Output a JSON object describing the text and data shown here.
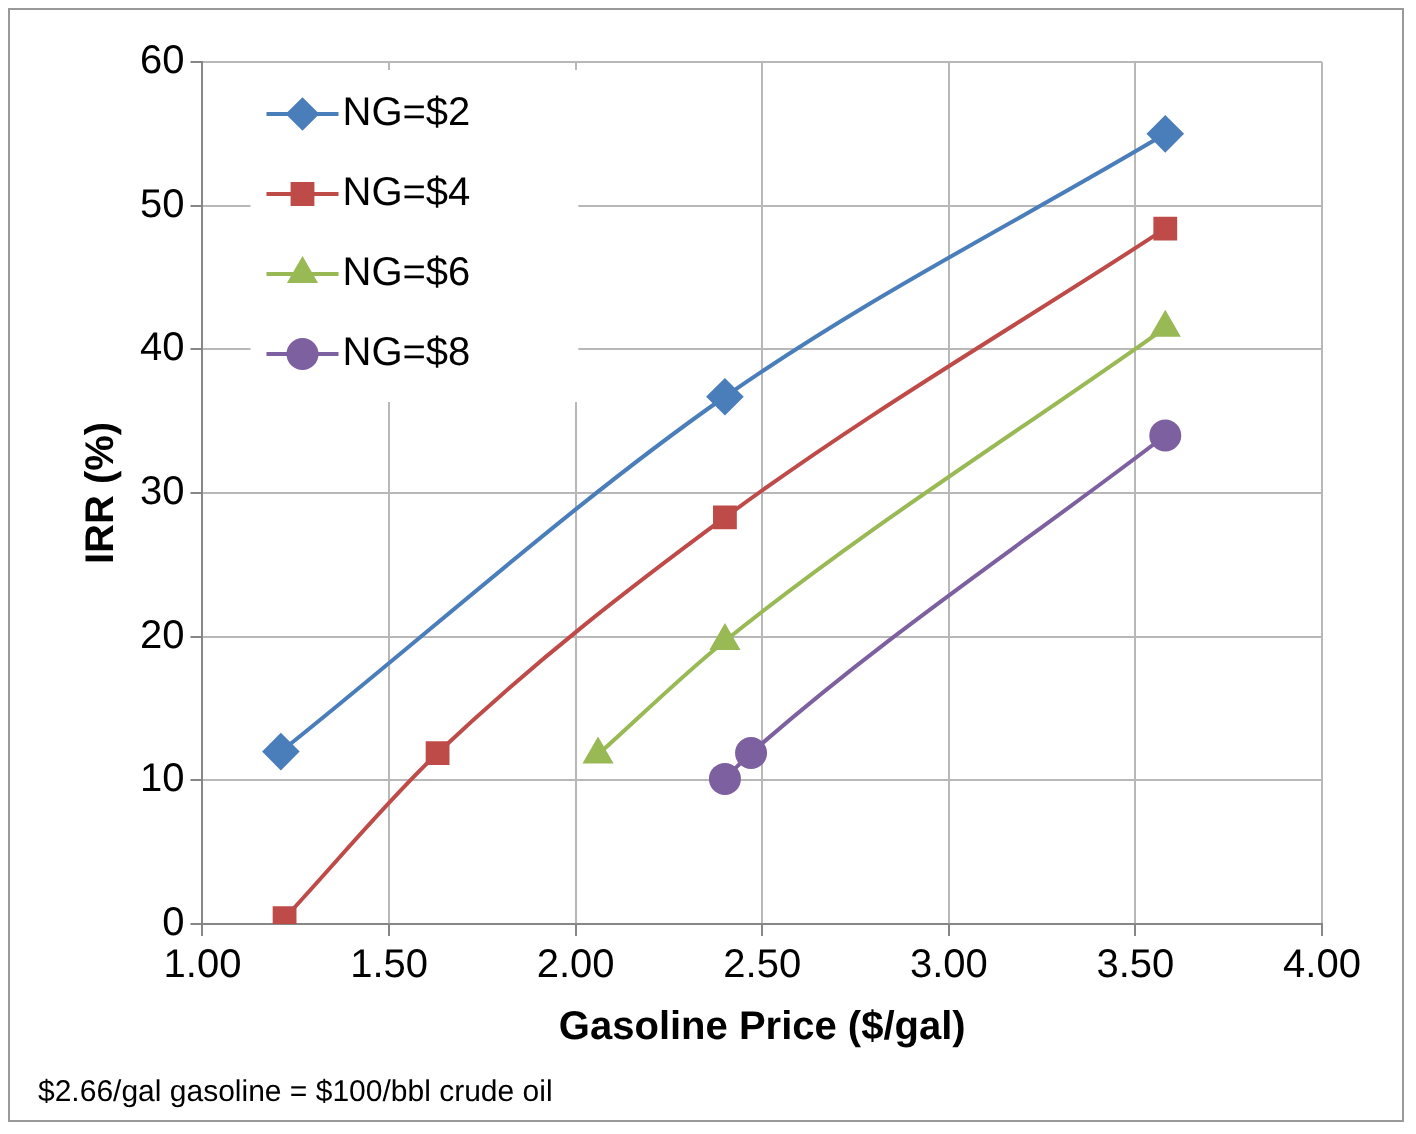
{
  "chart_data": {
    "type": "line",
    "xlabel": "Gasoline Price ($/gal)",
    "ylabel": "IRR (%)",
    "xlim": [
      1,
      4
    ],
    "ylim": [
      0,
      60
    ],
    "xticks": [
      {
        "value": 1,
        "label": "1.00"
      },
      {
        "value": 1.5,
        "label": "1.50"
      },
      {
        "value": 2,
        "label": "2.00"
      },
      {
        "value": 2.5,
        "label": "2.50"
      },
      {
        "value": 3,
        "label": "3.00"
      },
      {
        "value": 3.5,
        "label": "3.50"
      },
      {
        "value": 4,
        "label": "4.00"
      }
    ],
    "yticks": [
      0,
      10,
      20,
      30,
      40,
      50,
      60
    ],
    "grid": true,
    "legend": "top left",
    "series": [
      {
        "name": "NG=$2",
        "color": "#4a7ebb",
        "marker": "diamond",
        "x": [
          1.21,
          2.4,
          3.58
        ],
        "values": [
          12.0,
          36.7,
          55.0
        ]
      },
      {
        "name": "NG=$4",
        "color": "#be4b48",
        "marker": "square",
        "x": [
          1.22,
          1.63,
          2.4,
          3.58
        ],
        "values": [
          0.4,
          11.9,
          28.3,
          48.4
        ]
      },
      {
        "name": "NG=$6",
        "color": "#98b954",
        "marker": "triangle",
        "x": [
          2.06,
          2.4,
          3.58
        ],
        "values": [
          11.8,
          19.7,
          41.5
        ]
      },
      {
        "name": "NG=$8",
        "color": "#7d60a0",
        "marker": "circle",
        "x": [
          2.4,
          2.47,
          3.58
        ],
        "values": [
          10.1,
          11.9,
          34.0
        ]
      }
    ],
    "annotations": [
      "$2.66/gal gasoline = $100/bbl crude oil"
    ]
  }
}
